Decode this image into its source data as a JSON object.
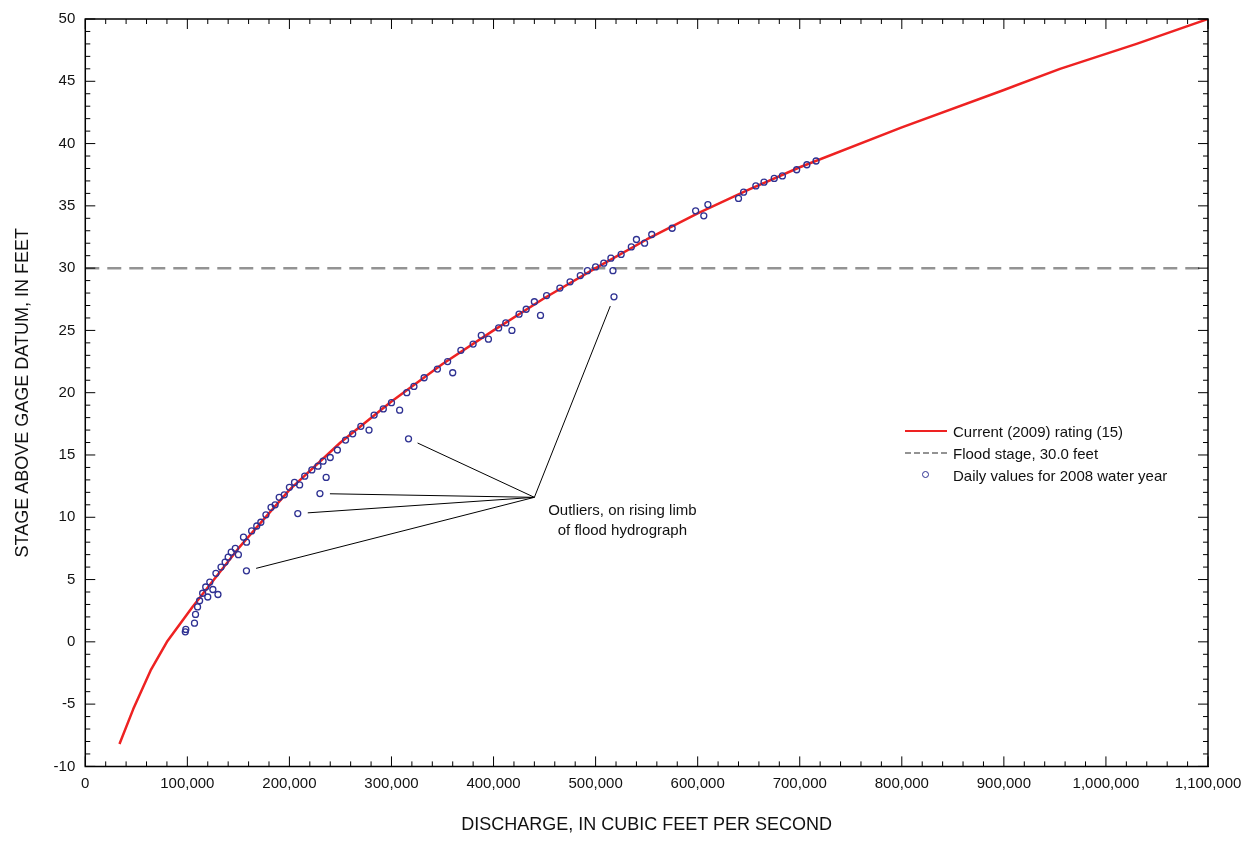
{
  "chart_data": {
    "type": "line",
    "xlabel": "DISCHARGE, IN CUBIC FEET PER SECOND",
    "ylabel": "STAGE ABOVE GAGE DATUM, IN FEET",
    "xlim": [
      0,
      1100000
    ],
    "xticks": [
      {
        "value": 0,
        "label": "0"
      },
      {
        "value": 100000,
        "label": "100,000"
      },
      {
        "value": 200000,
        "label": "200,000"
      },
      {
        "value": 300000,
        "label": "300,000"
      },
      {
        "value": 400000,
        "label": "400,000"
      },
      {
        "value": 500000,
        "label": "500,000"
      },
      {
        "value": 600000,
        "label": "600,000"
      },
      {
        "value": 700000,
        "label": "700,000"
      },
      {
        "value": 800000,
        "label": "800,000"
      },
      {
        "value": 900000,
        "label": "900,000"
      },
      {
        "value": 1000000,
        "label": "1,000,000"
      },
      {
        "value": 1100000,
        "label": "1,100,000"
      }
    ],
    "ylim": [
      -10,
      50
    ],
    "yticks": [
      -10,
      -5,
      0,
      5,
      10,
      15,
      20,
      25,
      30,
      35,
      40,
      45,
      50
    ],
    "grid": false,
    "legend": "right",
    "series": [
      {
        "name": "Current (2009) rating (15)",
        "color": "#ee2222",
        "line_style": "solid",
        "marker": "none",
        "x": [
          33500,
          47000,
          64000,
          80000,
          105000,
          150000,
          200000,
          250000,
          300000,
          350000,
          400000,
          450000,
          500000,
          550000,
          600000,
          650000,
          700000,
          800000,
          900000,
          955000,
          1030000,
          1100000
        ],
        "values": [
          -8.2,
          -5.4,
          -2.3,
          0,
          2.8,
          7.5,
          12.2,
          16.0,
          19.3,
          22.3,
          25.0,
          27.6,
          30.0,
          32.3,
          34.4,
          36.3,
          38.1,
          41.3,
          44.3,
          46.0,
          48.0,
          50.0
        ]
      },
      {
        "type": "scatter",
        "name": "Daily values for 2008 water year",
        "color": "#2e3192",
        "marker": "circle",
        "x": [
          98000,
          98500,
          107000,
          108000,
          110000,
          112000,
          115000,
          118000,
          120000,
          122000,
          125000,
          128000,
          130000,
          133000,
          137000,
          140000,
          143000,
          147000,
          150000,
          155000,
          158000,
          163000,
          168000,
          172000,
          177000,
          182000,
          186000,
          190000,
          195000,
          200000,
          205000,
          210000,
          215000,
          222000,
          228000,
          233000,
          236000,
          240000,
          247000,
          255000,
          262000,
          270000,
          278000,
          283000,
          292000,
          300000,
          308000,
          315000,
          322000,
          332000,
          345000,
          355000,
          360000,
          368000,
          380000,
          388000,
          395000,
          405000,
          412000,
          418000,
          425000,
          432000,
          440000,
          446000,
          452000,
          465000,
          475000,
          485000,
          492000,
          500000,
          508000,
          515000,
          517000,
          525000,
          535000,
          540000,
          548000,
          555000,
          575000,
          598000,
          606000,
          610000,
          640000,
          645000,
          657000,
          665000,
          675000,
          683000,
          697000,
          707000,
          716000
        ],
        "values": [
          0.8,
          1.0,
          1.5,
          2.2,
          2.8,
          3.3,
          3.9,
          4.4,
          3.6,
          4.8,
          4.2,
          5.5,
          3.8,
          6.0,
          6.4,
          6.8,
          7.2,
          7.5,
          7.0,
          8.4,
          8.0,
          8.9,
          9.3,
          9.6,
          10.2,
          10.8,
          11.0,
          11.6,
          11.8,
          12.4,
          12.8,
          12.6,
          13.3,
          13.8,
          14.1,
          14.5,
          13.2,
          14.8,
          15.4,
          16.2,
          16.7,
          17.3,
          17.0,
          18.2,
          18.7,
          19.2,
          18.6,
          20.0,
          20.5,
          21.2,
          21.9,
          22.5,
          21.6,
          23.4,
          23.9,
          24.6,
          24.3,
          25.2,
          25.6,
          25.0,
          26.3,
          26.7,
          27.3,
          26.2,
          27.8,
          28.4,
          28.9,
          29.4,
          29.8,
          30.1,
          30.4,
          30.8,
          29.8,
          31.1,
          31.7,
          32.3,
          32.0,
          32.7,
          33.2,
          34.6,
          34.2,
          35.1,
          35.6,
          36.1,
          36.6,
          36.9,
          37.2,
          37.4,
          37.9,
          38.3,
          38.6
        ]
      },
      {
        "type": "scatter",
        "color": "#2e3192",
        "marker": "circle",
        "x": [
          157900,
          208200,
          229900,
          316700,
          518000
        ],
        "values": [
          5.7,
          10.3,
          11.9,
          16.3,
          27.7
        ]
      }
    ],
    "ref_lines": [
      {
        "axis": "y",
        "value": 30,
        "label": "Flood stage, 30.0 feet",
        "color": "#939393",
        "line_style": "dashed"
      }
    ],
    "annotations": [
      "Outliers, on rising limb\nof flood hydrograph"
    ]
  }
}
